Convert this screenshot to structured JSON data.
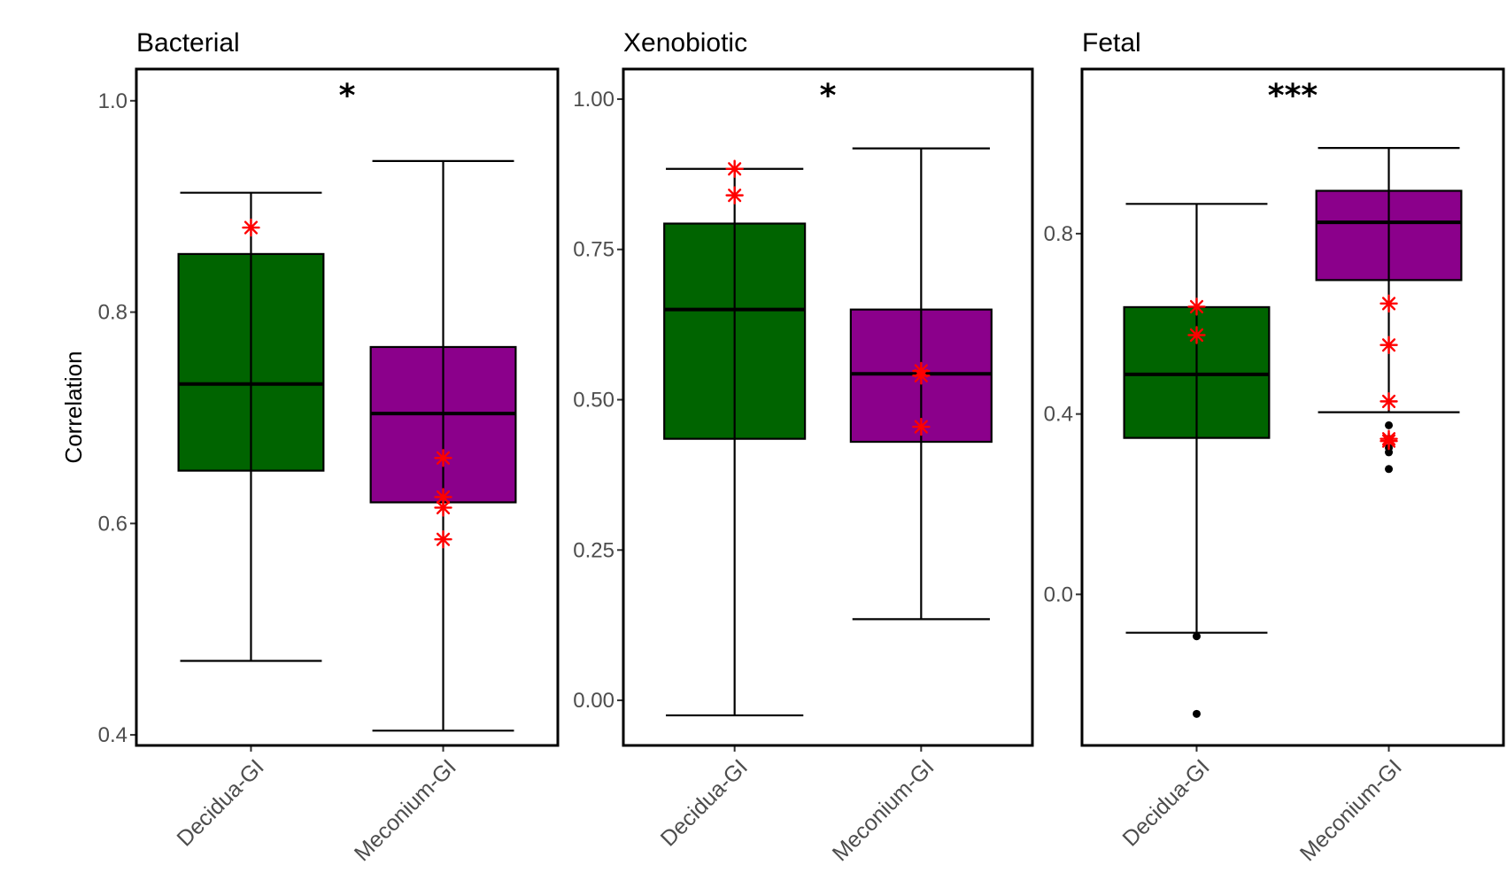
{
  "y_axis_label": "Correlation",
  "colors": {
    "Decidua-GI": "#006400",
    "Meconium-GI": "#8B008B",
    "highlight": "#ff0000",
    "outlier": "#000000"
  },
  "chart_data": [
    {
      "type": "boxplot",
      "title": "Bacterial",
      "ylabel": "Correlation",
      "significance": "*",
      "ylim": [
        0.39,
        1.03
      ],
      "yticks": [
        0.4,
        0.6,
        0.8,
        1.0
      ],
      "ytick_labels": [
        "0.4",
        "0.6",
        "0.8",
        "1.0"
      ],
      "categories": [
        "Decidua-GI",
        "Meconium-GI"
      ],
      "boxes": [
        {
          "category": "Decidua-GI",
          "whisker_low": 0.47,
          "q1": 0.65,
          "median": 0.732,
          "q3": 0.855,
          "whisker_high": 0.913,
          "outliers": [],
          "highlights": [
            0.88
          ]
        },
        {
          "category": "Meconium-GI",
          "whisker_low": 0.404,
          "q1": 0.62,
          "median": 0.704,
          "q3": 0.767,
          "whisker_high": 0.943,
          "outliers": [],
          "highlights": [
            0.662,
            0.625,
            0.615,
            0.585
          ]
        }
      ]
    },
    {
      "type": "boxplot",
      "title": "Xenobiotic",
      "ylabel": "",
      "significance": "*",
      "ylim": [
        -0.075,
        1.05
      ],
      "yticks": [
        0.0,
        0.25,
        0.5,
        0.75,
        1.0
      ],
      "ytick_labels": [
        "0.00",
        "0.25",
        "0.50",
        "0.75",
        "1.00"
      ],
      "categories": [
        "Decidua-GI",
        "Meconium-GI"
      ],
      "boxes": [
        {
          "category": "Decidua-GI",
          "whisker_low": -0.025,
          "q1": 0.435,
          "median": 0.65,
          "q3": 0.793,
          "whisker_high": 0.884,
          "outliers": [],
          "highlights": [
            0.884,
            0.84
          ]
        },
        {
          "category": "Meconium-GI",
          "whisker_low": 0.135,
          "q1": 0.43,
          "median": 0.543,
          "q3": 0.65,
          "whisker_high": 0.918,
          "outliers": [],
          "highlights": [
            0.548,
            0.54,
            0.455
          ]
        }
      ]
    },
    {
      "type": "boxplot",
      "title": "Fetal",
      "ylabel": "",
      "significance": "***",
      "ylim": [
        -0.335,
        1.165
      ],
      "yticks": [
        0.0,
        0.4,
        0.8
      ],
      "ytick_labels": [
        "0.0",
        "0.4",
        "0.8"
      ],
      "categories": [
        "Decidua-GI",
        "Meconium-GI"
      ],
      "boxes": [
        {
          "category": "Decidua-GI",
          "whisker_low": -0.085,
          "q1": 0.347,
          "median": 0.488,
          "q3": 0.637,
          "whisker_high": 0.866,
          "outliers": [
            -0.093,
            -0.265
          ],
          "highlights": [
            0.638,
            0.575
          ]
        },
        {
          "category": "Meconium-GI",
          "whisker_low": 0.404,
          "q1": 0.697,
          "median": 0.825,
          "q3": 0.895,
          "whisker_high": 0.99,
          "outliers": [
            0.375,
            0.345,
            0.325,
            0.315,
            0.278
          ],
          "highlights": [
            0.645,
            0.553,
            0.428,
            0.345,
            0.34
          ]
        }
      ]
    }
  ]
}
